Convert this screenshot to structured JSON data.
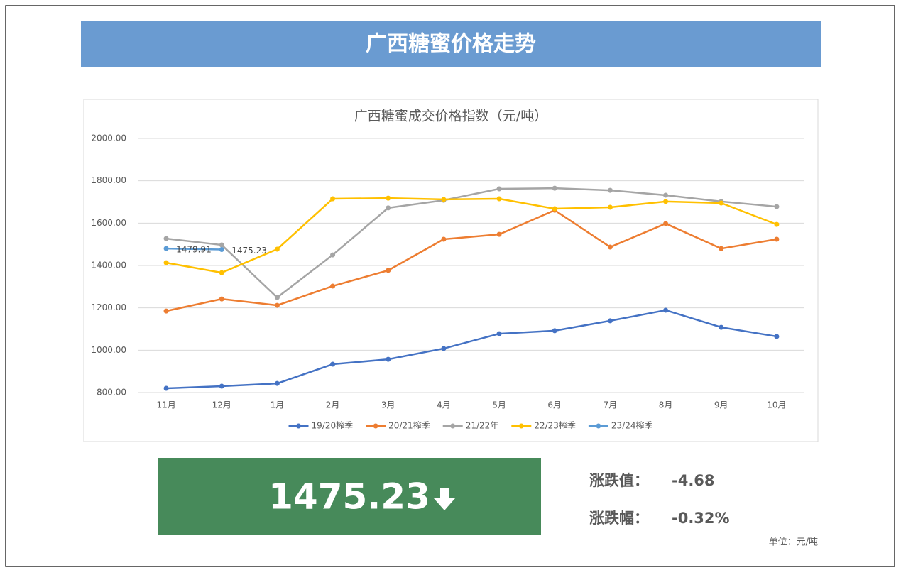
{
  "header": {
    "title": "广西糖蜜价格走势"
  },
  "chart_data": {
    "type": "line",
    "title": "广西糖蜜成交价格指数（元/吨）",
    "categories": [
      "11月",
      "12月",
      "1月",
      "2月",
      "3月",
      "4月",
      "5月",
      "6月",
      "7月",
      "8月",
      "9月",
      "10月"
    ],
    "ylim": [
      800,
      2000
    ],
    "yticks": [
      {
        "value": 800,
        "label": "800.00"
      },
      {
        "value": 1000,
        "label": "1000.00"
      },
      {
        "value": 1200,
        "label": "1200.00"
      },
      {
        "value": 1400,
        "label": "1400.00"
      },
      {
        "value": 1600,
        "label": "1600.00"
      },
      {
        "value": 1800,
        "label": "1800.00"
      },
      {
        "value": 2000,
        "label": "2000.00"
      }
    ],
    "grid": true,
    "legend": "bottom",
    "series": [
      {
        "name": "19/20榨季",
        "color": "#4472c4",
        "values": [
          820,
          830,
          843,
          934,
          957,
          1008,
          1078,
          1092,
          1139,
          1189,
          1108,
          1065
        ]
      },
      {
        "name": "20/21榨季",
        "color": "#ed7d31",
        "values": [
          1185,
          1242,
          1212,
          1303,
          1377,
          1524,
          1547,
          1661,
          1487,
          1598,
          1480,
          1524
        ]
      },
      {
        "name": "21/22年",
        "color": "#a5a5a5",
        "values": [
          1527,
          1497,
          1249,
          1450,
          1672,
          1708,
          1762,
          1765,
          1755,
          1732,
          1702,
          1678
        ]
      },
      {
        "name": "22/23榨季",
        "color": "#ffc000",
        "values": [
          1413,
          1366,
          1477,
          1715,
          1718,
          1712,
          1715,
          1668,
          1675,
          1702,
          1695,
          1594
        ]
      },
      {
        "name": "23/24榨季",
        "color": "#5b9bd5",
        "values": [
          1479.91,
          1475.23,
          null,
          null,
          null,
          null,
          null,
          null,
          null,
          null,
          null,
          null
        ],
        "show_labels": true
      }
    ]
  },
  "summary": {
    "price": "1475.23",
    "change_label": "涨跌值：",
    "change": "-4.68",
    "pct_label": "涨跌幅：",
    "pct": "-0.32%",
    "unit_note": "单位：元/吨"
  }
}
